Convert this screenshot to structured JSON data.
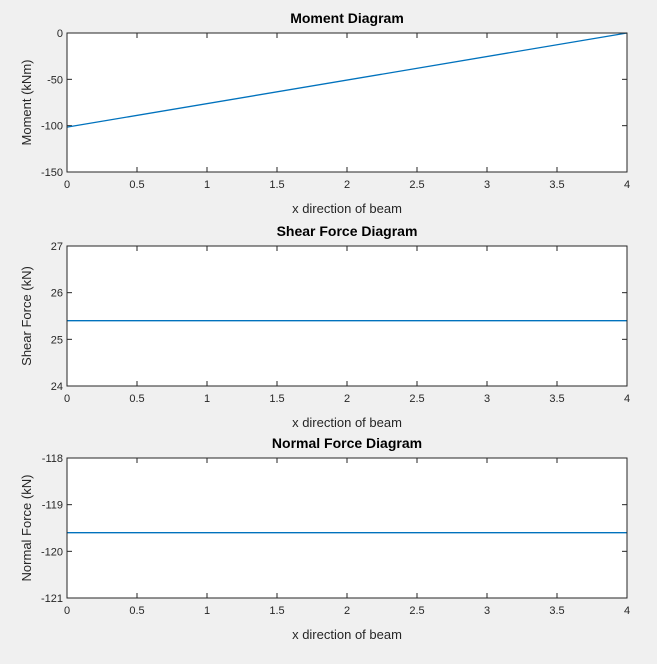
{
  "colors": {
    "background": "#f0f0f0",
    "axes_bg": "#ffffff",
    "line": "#0072bd",
    "axis": "#262626"
  },
  "chart_data": [
    {
      "type": "line",
      "title": "Moment Diagram",
      "xlabel": "x direction of beam",
      "ylabel": "Moment (kNm)",
      "xlim": [
        0,
        4
      ],
      "ylim": [
        -150,
        0
      ],
      "xticks": [
        "0",
        "0.5",
        "1",
        "1.5",
        "2",
        "2.5",
        "3",
        "3.5",
        "4"
      ],
      "yticks": [
        "-150",
        "-100",
        "-50",
        "0"
      ],
      "grid": false,
      "series": [
        {
          "x": [
            0,
            4
          ],
          "y": [
            -101.6,
            0
          ]
        }
      ]
    },
    {
      "type": "line",
      "title": "Shear Force Diagram",
      "xlabel": "x direction of beam",
      "ylabel": "Shear Force (kN)",
      "xlim": [
        0,
        4
      ],
      "ylim": [
        24,
        27
      ],
      "xticks": [
        "0",
        "0.5",
        "1",
        "1.5",
        "2",
        "2.5",
        "3",
        "3.5",
        "4"
      ],
      "yticks": [
        "24",
        "25",
        "26",
        "27"
      ],
      "grid": false,
      "series": [
        {
          "x": [
            0,
            4
          ],
          "y": [
            25.4,
            25.4
          ]
        }
      ]
    },
    {
      "type": "line",
      "title": "Normal Force Diagram",
      "xlabel": "x direction of beam",
      "ylabel": "Normal Force (kN)",
      "xlim": [
        0,
        4
      ],
      "ylim": [
        -121,
        -118
      ],
      "xticks": [
        "0",
        "0.5",
        "1",
        "1.5",
        "2",
        "2.5",
        "3",
        "3.5",
        "4"
      ],
      "yticks": [
        "-121",
        "-120",
        "-119",
        "-118"
      ],
      "grid": false,
      "series": [
        {
          "x": [
            0,
            4
          ],
          "y": [
            -119.6,
            -119.6
          ]
        }
      ]
    }
  ]
}
